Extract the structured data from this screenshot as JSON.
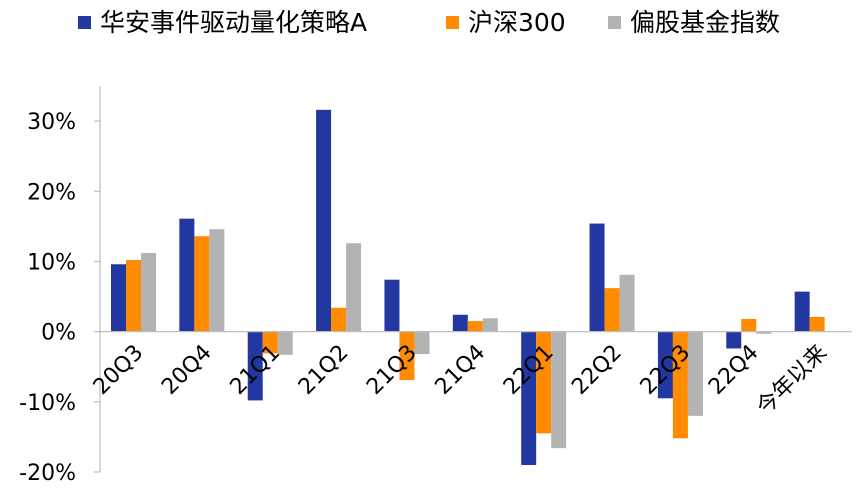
{
  "chart_data": {
    "type": "bar",
    "title": "",
    "xlabel": "",
    "ylabel": "",
    "categories": [
      "20Q3",
      "20Q4",
      "21Q1",
      "21Q2",
      "21Q3",
      "21Q4",
      "22Q1",
      "22Q2",
      "22Q3",
      "22Q4",
      "今年以来"
    ],
    "series": [
      {
        "name": "华安事件驱动量化策略A",
        "color": "#2238A0",
        "values": [
          9.6,
          16.1,
          -9.8,
          31.6,
          7.4,
          2.4,
          -19.0,
          15.4,
          -9.5,
          -2.4,
          5.7
        ]
      },
      {
        "name": "沪深300",
        "color": "#FF8C00",
        "values": [
          10.2,
          13.6,
          -3.1,
          3.4,
          -6.9,
          1.5,
          -14.5,
          6.2,
          -15.2,
          1.8,
          2.1
        ]
      },
      {
        "name": "偏股基金指数",
        "color": "#B3B3B3",
        "values": [
          11.2,
          14.6,
          -3.3,
          12.6,
          -3.2,
          1.9,
          -16.6,
          8.1,
          -12.0,
          -0.3,
          0.0
        ]
      }
    ],
    "ylim": [
      -20,
      35
    ],
    "yticks": [
      -20,
      -10,
      0,
      10,
      20,
      30
    ],
    "ytick_labels": [
      "-20%",
      "-10%",
      "0%",
      "10%",
      "20%",
      "30%"
    ],
    "grid": false,
    "legend_position": "top"
  }
}
